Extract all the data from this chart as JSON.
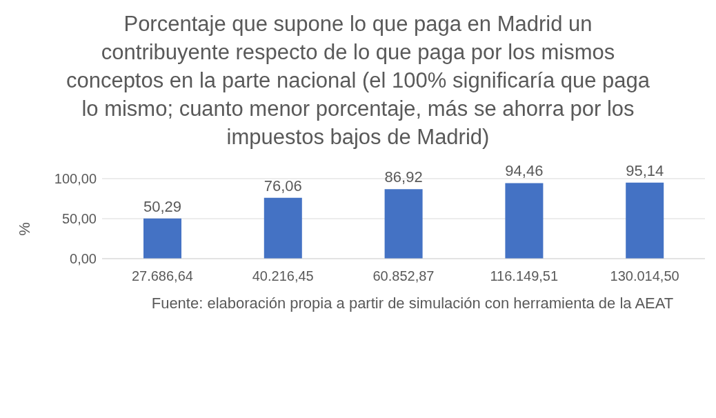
{
  "chart_data": {
    "type": "bar",
    "title": "Porcentaje que supone lo que paga en Madrid un contribuyente respecto de lo que paga por los mismos conceptos en la parte nacional (el 100% significaría que paga lo mismo; cuanto menor porcentaje, más se ahorra por los impuestos bajos de Madrid)",
    "categories": [
      "27.686,64",
      "40.216,45",
      "60.852,87",
      "116.149,51",
      "130.014,50"
    ],
    "values": [
      50.29,
      76.06,
      86.92,
      94.46,
      95.14
    ],
    "value_labels": [
      "50,29",
      "76,06",
      "86,92",
      "94,46",
      "95,14"
    ],
    "color": "#4472c4",
    "ylabel": "%",
    "ylim": [
      0,
      100
    ],
    "yticks": [
      {
        "value": 0,
        "label": "0,00"
      },
      {
        "value": 50,
        "label": "50,00"
      },
      {
        "value": 100,
        "label": "100,00"
      }
    ],
    "grid": "y",
    "annotations": [
      "Fuente: elaboración propia a partir de simulación con herramienta de la AEAT"
    ]
  }
}
